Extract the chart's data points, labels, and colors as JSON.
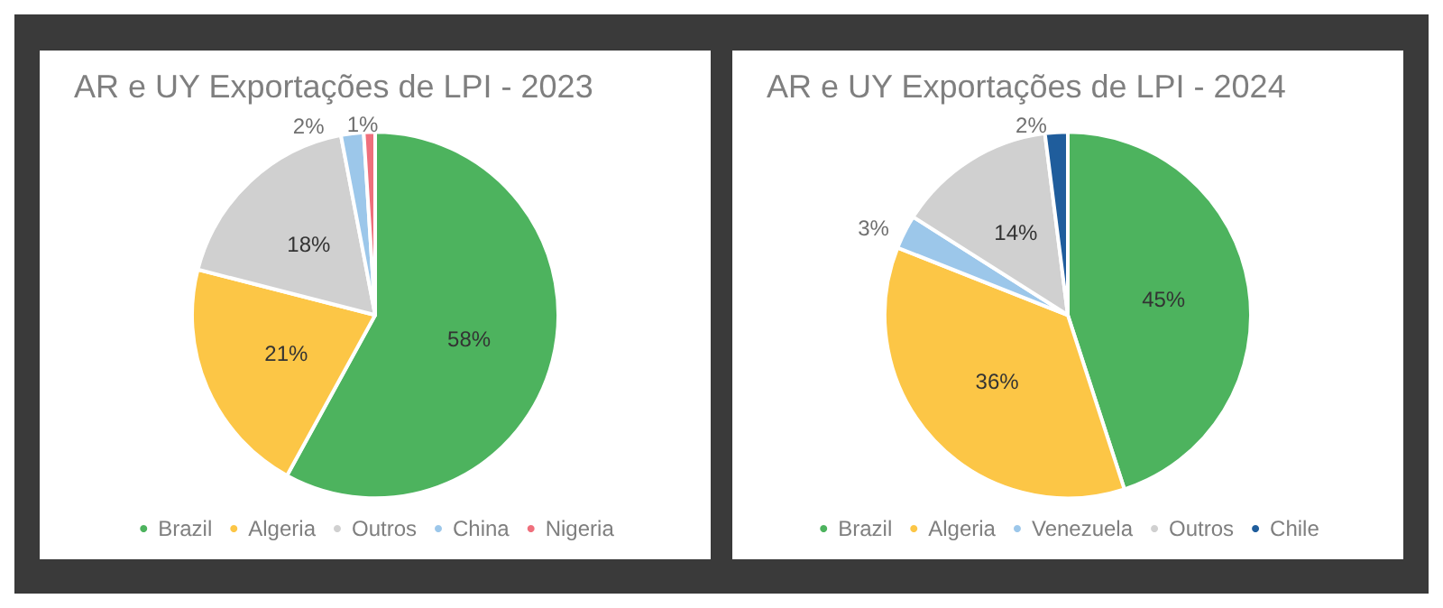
{
  "chart_data": [
    {
      "type": "pie",
      "title": "AR e UY Exportações de LPI - 2023",
      "categories": [
        "Brazil",
        "Algeria",
        "Outros",
        "China",
        "Nigeria"
      ],
      "values": [
        58,
        21,
        18,
        2,
        1
      ],
      "value_labels": [
        "58%",
        "21%",
        "18%",
        "2%",
        "1%"
      ],
      "colors": [
        "#4db35e",
        "#fcc646",
        "#d0d0d0",
        "#9cc7ea",
        "#ef6f7c"
      ],
      "legend": "bottom"
    },
    {
      "type": "pie",
      "title": "AR e UY Exportações de LPI - 2024",
      "categories": [
        "Brazil",
        "Algeria",
        "Venezuela",
        "Outros",
        "Chile"
      ],
      "values": [
        45,
        36,
        3,
        14,
        2
      ],
      "value_labels": [
        "45%",
        "36%",
        "3%",
        "14%",
        "2%"
      ],
      "colors": [
        "#4db35e",
        "#fcc646",
        "#9cc7ea",
        "#d0d0d0",
        "#1f5d9c"
      ],
      "legend": "bottom"
    }
  ]
}
